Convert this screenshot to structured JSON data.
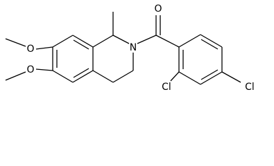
{
  "atoms": [
    {
      "label": "O"
    },
    {
      "label": "O"
    },
    {
      "label": "N"
    },
    {
      "label": "O"
    },
    {
      "label": "Cl"
    },
    {
      "label": "Cl"
    }
  ]
}
